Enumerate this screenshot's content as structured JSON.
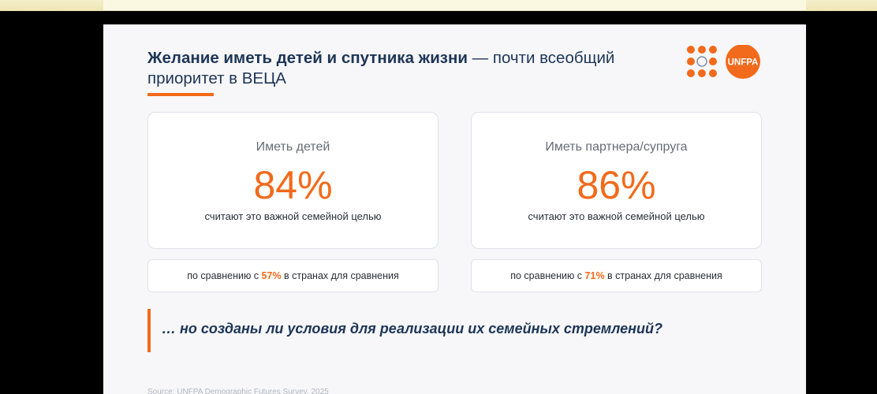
{
  "title": {
    "strong": "Желание иметь детей и спутника жизни",
    "rest": " — почти всеобщий приоритет в ВЕЦА"
  },
  "logo": {
    "text": "UNFPA",
    "brand_color": "#f26a1b"
  },
  "cards": [
    {
      "label": "Иметь детей",
      "value": "84%",
      "note": "считают это важной семейной целью",
      "compare_prefix": "по сравнению с ",
      "compare_value": "57%",
      "compare_suffix": " в странах для сравнения"
    },
    {
      "label": "Иметь партнера/супруга",
      "value": "86%",
      "note": "считают это важной семейной целью",
      "compare_prefix": "по сравнению с ",
      "compare_value": "71%",
      "compare_suffix": " в странах для сравнения"
    }
  ],
  "question": "… но созданы ли условия для реализации их семейных стремлений?",
  "source": "Source: UNFPA Demographic Futures Survey, 2025",
  "colors": {
    "accent": "#f26a1b",
    "navy": "#1d3557"
  }
}
